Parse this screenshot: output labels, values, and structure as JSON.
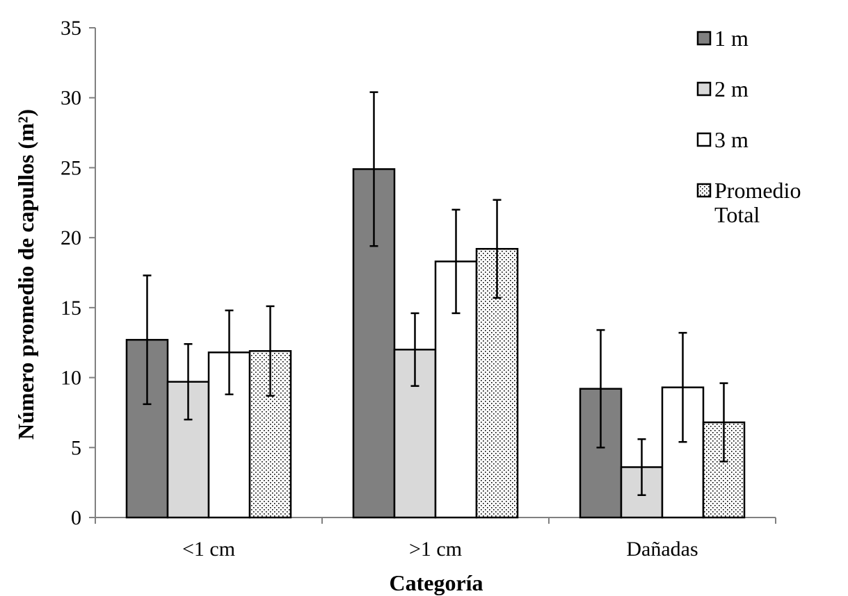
{
  "chart_data": {
    "type": "bar",
    "title": "",
    "xlabel": "Categoría",
    "ylabel": "Número promedio de capullos  (m²)",
    "ylim": [
      0,
      35
    ],
    "yticks": [
      "0",
      "5",
      "10",
      "15",
      "20",
      "25",
      "30",
      "35"
    ],
    "categories": [
      "<1 cm",
      ">1 cm",
      "Dañadas"
    ],
    "grid": false,
    "legend_position": "top-right",
    "series": [
      {
        "name": "1 m",
        "legend_lines": [
          "1 m"
        ],
        "values": [
          12.7,
          24.9,
          9.2
        ],
        "error": [
          4.6,
          5.5,
          4.2
        ],
        "fill": "#808080",
        "pattern": "solid"
      },
      {
        "name": "2 m",
        "legend_lines": [
          "2 m"
        ],
        "values": [
          9.7,
          12.0,
          3.6
        ],
        "error": [
          2.7,
          2.6,
          2.0
        ],
        "fill": "#d9d9d9",
        "pattern": "solid"
      },
      {
        "name": "3 m",
        "legend_lines": [
          "3 m"
        ],
        "values": [
          11.8,
          18.3,
          9.3
        ],
        "error": [
          3.0,
          3.7,
          3.9
        ],
        "fill": "#ffffff",
        "pattern": "solid"
      },
      {
        "name": "Promedio Total",
        "legend_lines": [
          "Promedio",
          "Total"
        ],
        "values": [
          11.9,
          19.2,
          6.8
        ],
        "error": [
          3.2,
          3.5,
          2.8
        ],
        "fill": "#ffffff",
        "pattern": "dotted"
      }
    ]
  }
}
